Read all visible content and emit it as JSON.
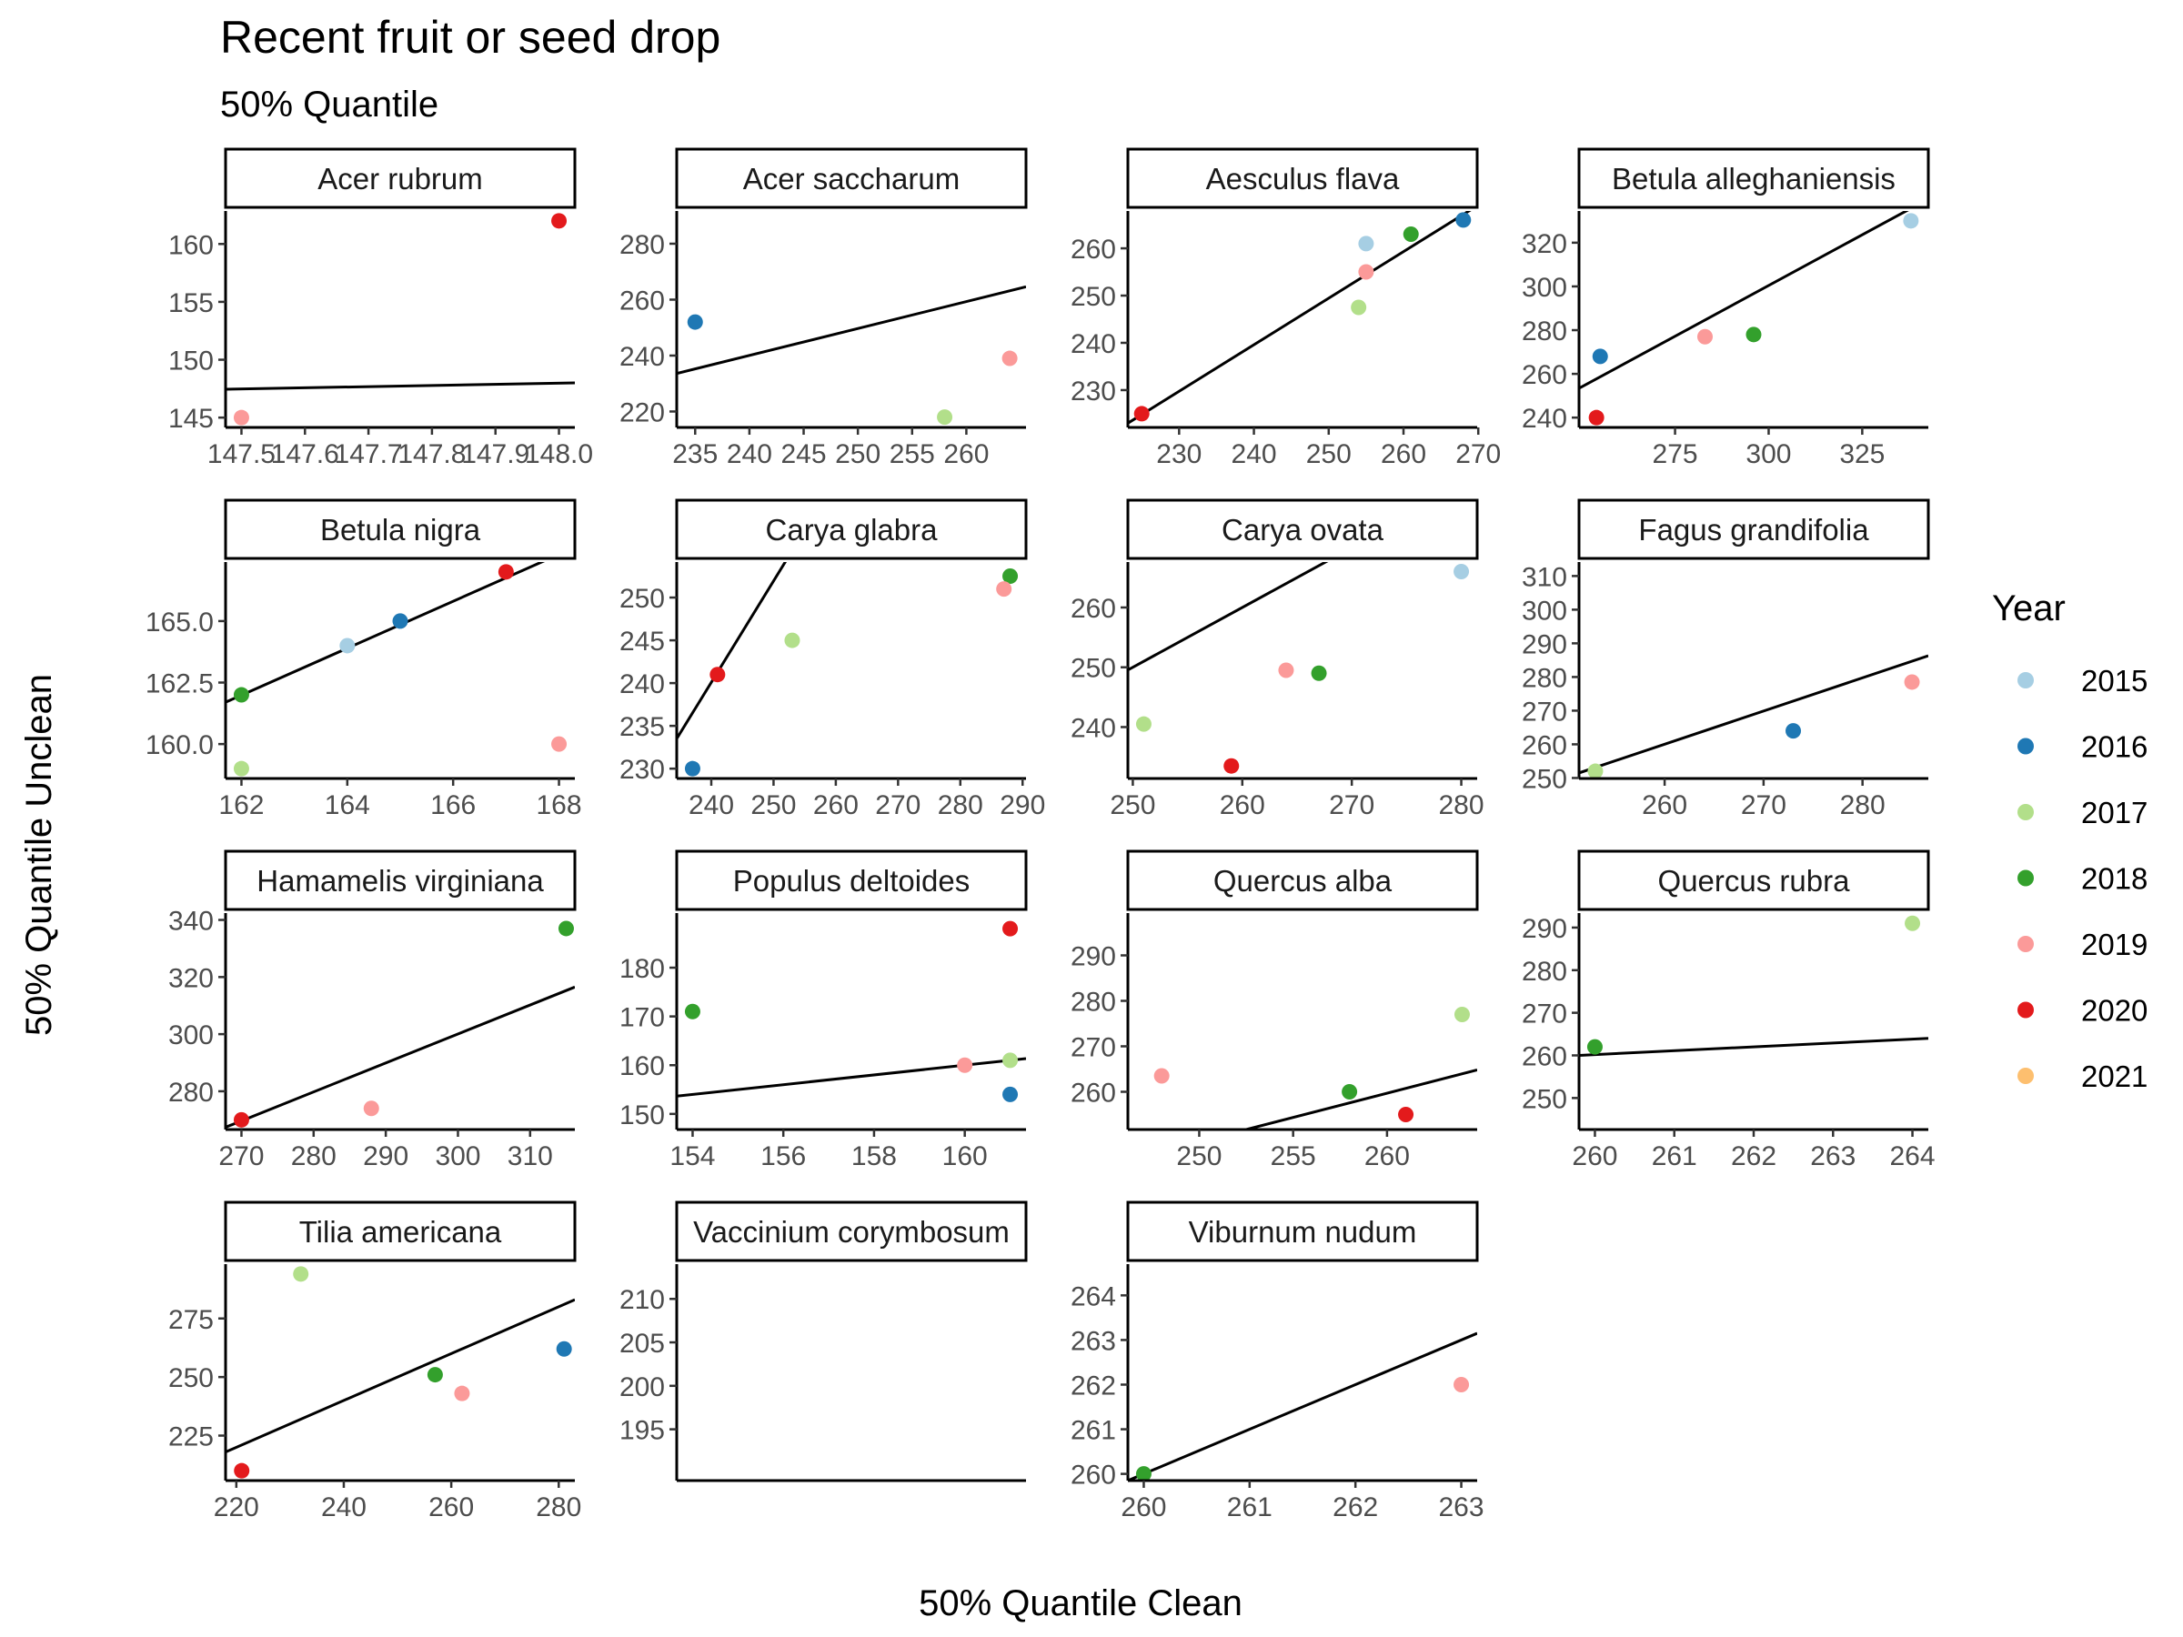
{
  "chart_data": {
    "type": "scatter",
    "title": "Recent fruit or seed drop",
    "subtitle": "50% Quantile",
    "xlabel": "50% Quantile Clean",
    "ylabel": "50% Quantile Unclean",
    "grid": false,
    "legend": {
      "title": "Year",
      "position": "right",
      "entries": [
        {
          "label": "2015",
          "color": "#a6cee3"
        },
        {
          "label": "2016",
          "color": "#1f78b4"
        },
        {
          "label": "2017",
          "color": "#b2df8a"
        },
        {
          "label": "2018",
          "color": "#33a02c"
        },
        {
          "label": "2019",
          "color": "#fb9a99"
        },
        {
          "label": "2020",
          "color": "#e31a1c"
        },
        {
          "label": "2021",
          "color": "#fdbf6f"
        }
      ]
    },
    "panels": [
      {
        "name": "Acer rubrum",
        "xlim": [
          147.475,
          148.025
        ],
        "ylim": [
          144.15,
          162.85
        ],
        "xticks": [
          147.5,
          147.6,
          147.7,
          147.8,
          147.9,
          148.0
        ],
        "xtick_labels": [
          "147.5",
          "147.6",
          "147.7",
          "147.8",
          "147.9",
          "148.0"
        ],
        "yticks": [
          145,
          150,
          155,
          160
        ],
        "ytick_labels": [
          "145",
          "150",
          "155",
          "160"
        ],
        "points": [
          {
            "x": 147.5,
            "y": 145,
            "year": "2019"
          },
          {
            "x": 148.0,
            "y": 162,
            "year": "2020"
          }
        ],
        "fit": [
          [
            147.475,
            147.45
          ],
          [
            148.025,
            148.0
          ]
        ]
      },
      {
        "name": "Acer saccharum",
        "xlim": [
          233.3,
          265.5
        ],
        "ylim": [
          214.3,
          291.7
        ],
        "xticks": [
          235,
          240,
          245,
          250,
          255,
          260
        ],
        "xtick_labels": [
          "235",
          "240",
          "245",
          "250",
          "255",
          "260"
        ],
        "yticks": [
          220,
          240,
          260,
          280
        ],
        "ytick_labels": [
          "220",
          "240",
          "260",
          "280"
        ],
        "points": [
          {
            "x": 235,
            "y": 252,
            "year": "2016"
          },
          {
            "x": 258,
            "y": 218,
            "year": "2017"
          },
          {
            "x": 264,
            "y": 239,
            "year": "2019"
          }
        ],
        "fit": [
          [
            233.3,
            233.6
          ],
          [
            265.5,
            264.6
          ]
        ]
      },
      {
        "name": "Aesculus flava",
        "xlim": [
          223.15,
          269.85
        ],
        "ylim": [
          222.1,
          267.9
        ],
        "xticks": [
          230,
          240,
          250,
          260,
          270
        ],
        "xtick_labels": [
          "230",
          "240",
          "250",
          "260",
          "270"
        ],
        "yticks": [
          230,
          240,
          250,
          260
        ],
        "ytick_labels": [
          "230",
          "240",
          "250",
          "260"
        ],
        "points": [
          {
            "x": 255,
            "y": 261,
            "year": "2015"
          },
          {
            "x": 268,
            "y": 266,
            "year": "2016"
          },
          {
            "x": 254,
            "y": 247.5,
            "year": "2017"
          },
          {
            "x": 261,
            "y": 263,
            "year": "2018"
          },
          {
            "x": 255,
            "y": 255,
            "year": "2019"
          },
          {
            "x": 225,
            "y": 225,
            "year": "2020"
          }
        ],
        "fit": [
          [
            223.15,
            223.0
          ],
          [
            269.85,
            269.0
          ]
        ]
      },
      {
        "name": "Betula alleghaniensis",
        "xlim": [
          249.35,
          342.65
        ],
        "ylim": [
          235.5,
          334.5
        ],
        "xticks": [
          275,
          300,
          325
        ],
        "xtick_labels": [
          "275",
          "300",
          "325"
        ],
        "yticks": [
          240,
          260,
          280,
          300,
          320
        ],
        "ytick_labels": [
          "240",
          "260",
          "280",
          "300",
          "320"
        ],
        "points": [
          {
            "x": 338,
            "y": 330,
            "year": "2015"
          },
          {
            "x": 255,
            "y": 268,
            "year": "2016"
          },
          {
            "x": 296,
            "y": 278,
            "year": "2018"
          },
          {
            "x": 283,
            "y": 277,
            "year": "2019"
          },
          {
            "x": 254,
            "y": 240,
            "year": "2020"
          }
        ],
        "fit": [
          [
            249.35,
            253.4
          ],
          [
            342.65,
            340.0
          ]
        ]
      },
      {
        "name": "Betula nigra",
        "xlim": [
          161.7,
          168.3
        ],
        "ylim": [
          158.6,
          167.4
        ],
        "xticks": [
          162,
          164,
          166,
          168
        ],
        "xtick_labels": [
          "162",
          "164",
          "166",
          "168"
        ],
        "yticks": [
          160.0,
          162.5,
          165.0
        ],
        "ytick_labels": [
          "160.0",
          "162.5",
          "165.0"
        ],
        "points": [
          {
            "x": 164,
            "y": 164,
            "year": "2015"
          },
          {
            "x": 165,
            "y": 165,
            "year": "2016"
          },
          {
            "x": 162,
            "y": 159,
            "year": "2017"
          },
          {
            "x": 162,
            "y": 162,
            "year": "2018"
          },
          {
            "x": 168,
            "y": 160,
            "year": "2019"
          },
          {
            "x": 167,
            "y": 167,
            "year": "2020"
          }
        ],
        "fit": [
          [
            161.7,
            161.7
          ],
          [
            168.3,
            168.0
          ]
        ]
      },
      {
        "name": "Carya glabra",
        "xlim": [
          234.45,
          290.55
        ],
        "ylim": [
          228.85,
          254.15
        ],
        "xticks": [
          240,
          250,
          260,
          270,
          280,
          290
        ],
        "xtick_labels": [
          "240",
          "250",
          "260",
          "270",
          "280",
          "290"
        ],
        "yticks": [
          230,
          235,
          240,
          245,
          250
        ],
        "ytick_labels": [
          "230",
          "235",
          "240",
          "245",
          "250"
        ],
        "points": [
          {
            "x": 237,
            "y": 230,
            "year": "2016"
          },
          {
            "x": 253,
            "y": 245,
            "year": "2017"
          },
          {
            "x": 288,
            "y": 252.5,
            "year": "2018"
          },
          {
            "x": 287,
            "y": 251,
            "year": "2019"
          },
          {
            "x": 241,
            "y": 241,
            "year": "2020"
          }
        ],
        "fit": [
          [
            234.45,
            233.5
          ],
          [
            290.55,
            300.0
          ]
        ]
      },
      {
        "name": "Carya ovata",
        "xlim": [
          249.55,
          281.45
        ],
        "ylim": [
          231.4,
          267.6
        ],
        "xticks": [
          250,
          260,
          270,
          280
        ],
        "xtick_labels": [
          "250",
          "260",
          "270",
          "280"
        ],
        "yticks": [
          240,
          250,
          260
        ],
        "ytick_labels": [
          "240",
          "250",
          "260"
        ],
        "points": [
          {
            "x": 280,
            "y": 266,
            "year": "2015"
          },
          {
            "x": 251,
            "y": 240.5,
            "year": "2017"
          },
          {
            "x": 267,
            "y": 249,
            "year": "2018"
          },
          {
            "x": 264,
            "y": 249.5,
            "year": "2019"
          },
          {
            "x": 259,
            "y": 233.5,
            "year": "2020"
          }
        ],
        "fit": [
          [
            249.55,
            249.55
          ],
          [
            281.45,
            281.45
          ]
        ]
      },
      {
        "name": "Fagus grandifolia",
        "xlim": [
          251.35,
          286.65
        ],
        "ylim": [
          249.85,
          314.15
        ],
        "xticks": [
          260,
          270,
          280
        ],
        "xtick_labels": [
          "260",
          "270",
          "280"
        ],
        "yticks": [
          250,
          260,
          270,
          280,
          290,
          300,
          310
        ],
        "ytick_labels": [
          "250",
          "260",
          "270",
          "280",
          "290",
          "300",
          "310"
        ],
        "points": [
          {
            "x": 273,
            "y": 264,
            "year": "2016"
          },
          {
            "x": 253,
            "y": 252,
            "year": "2017"
          },
          {
            "x": 285,
            "y": 278.5,
            "year": "2019"
          }
        ],
        "fit": [
          [
            251.35,
            251.5
          ],
          [
            286.65,
            286.3
          ]
        ]
      },
      {
        "name": "Hamamelis virginiana",
        "xlim": [
          267.8,
          316.2
        ],
        "ylim": [
          266.6,
          342.4
        ],
        "xticks": [
          270,
          280,
          290,
          300,
          310
        ],
        "xtick_labels": [
          "270",
          "280",
          "290",
          "300",
          "310"
        ],
        "yticks": [
          280,
          300,
          320,
          340
        ],
        "ytick_labels": [
          "280",
          "300",
          "320",
          "340"
        ],
        "points": [
          {
            "x": 315,
            "y": 337,
            "year": "2018"
          },
          {
            "x": 288,
            "y": 274,
            "year": "2019"
          },
          {
            "x": 270,
            "y": 270,
            "year": "2020"
          }
        ],
        "fit": [
          [
            267.8,
            267.4
          ],
          [
            316.2,
            316.5
          ]
        ]
      },
      {
        "name": "Populus deltoides",
        "xlim": [
          153.65,
          161.35
        ],
        "ylim": [
          146.8,
          191.2
        ],
        "xticks": [
          154,
          156,
          158,
          160
        ],
        "xtick_labels": [
          "154",
          "156",
          "158",
          "160"
        ],
        "yticks": [
          150,
          160,
          170,
          180
        ],
        "ytick_labels": [
          "150",
          "160",
          "170",
          "180"
        ],
        "points": [
          {
            "x": 161,
            "y": 154,
            "year": "2016"
          },
          {
            "x": 161,
            "y": 161,
            "year": "2017"
          },
          {
            "x": 154,
            "y": 171,
            "year": "2018"
          },
          {
            "x": 160,
            "y": 160,
            "year": "2019"
          },
          {
            "x": 161,
            "y": 188,
            "year": "2020"
          }
        ],
        "fit": [
          [
            153.65,
            153.65
          ],
          [
            161.35,
            161.35
          ]
        ]
      },
      {
        "name": "Quercus alba",
        "xlim": [
          246.2,
          264.8
        ],
        "ylim": [
          251.7,
          299.3
        ],
        "xticks": [
          250,
          255,
          260
        ],
        "xtick_labels": [
          "250",
          "255",
          "260"
        ],
        "yticks": [
          260,
          270,
          280,
          290
        ],
        "ytick_labels": [
          "260",
          "270",
          "280",
          "290"
        ],
        "points": [
          {
            "x": 264,
            "y": 277,
            "year": "2017"
          },
          {
            "x": 258,
            "y": 260,
            "year": "2018"
          },
          {
            "x": 248,
            "y": 263.5,
            "year": "2019"
          },
          {
            "x": 261,
            "y": 255,
            "year": "2020"
          }
        ],
        "fit": [
          [
            252.5,
            251.7
          ],
          [
            264.8,
            264.8
          ]
        ]
      },
      {
        "name": "Quercus rubra",
        "xlim": [
          259.8,
          264.2
        ],
        "ylim": [
          242.6,
          293.4
        ],
        "xticks": [
          260,
          261,
          262,
          263,
          264
        ],
        "xtick_labels": [
          "260",
          "261",
          "262",
          "263",
          "264"
        ],
        "yticks": [
          250,
          260,
          270,
          280,
          290
        ],
        "ytick_labels": [
          "250",
          "260",
          "270",
          "280",
          "290"
        ],
        "points": [
          {
            "x": 264,
            "y": 291,
            "year": "2017"
          },
          {
            "x": 260,
            "y": 262,
            "year": "2018"
          }
        ],
        "fit": [
          [
            259.8,
            260.0
          ],
          [
            264.2,
            264.0
          ]
        ]
      },
      {
        "name": "Tilia americana",
        "xlim": [
          218.0,
          283.0
        ],
        "ylim": [
          205.8,
          298.2
        ],
        "xticks": [
          220,
          240,
          260,
          280
        ],
        "xtick_labels": [
          "220",
          "240",
          "260",
          "280"
        ],
        "yticks": [
          225,
          250,
          275
        ],
        "ytick_labels": [
          "225",
          "250",
          "275"
        ],
        "points": [
          {
            "x": 281,
            "y": 262,
            "year": "2016"
          },
          {
            "x": 232,
            "y": 294,
            "year": "2017"
          },
          {
            "x": 257,
            "y": 251,
            "year": "2018"
          },
          {
            "x": 262,
            "y": 243,
            "year": "2019"
          },
          {
            "x": 221,
            "y": 210,
            "year": "2020"
          }
        ],
        "fit": [
          [
            218.0,
            218.0
          ],
          [
            283.0,
            283.0
          ]
        ]
      },
      {
        "name": "Vaccinium corymbosum",
        "xlim": [
          0,
          1
        ],
        "ylim": [
          189.1,
          214.0
        ],
        "xticks": [],
        "xtick_labels": [],
        "yticks": [
          195,
          200,
          205,
          210
        ],
        "ytick_labels": [
          "195",
          "200",
          "205",
          "210"
        ],
        "points": [],
        "fit": []
      },
      {
        "name": "Viburnum nudum",
        "xlim": [
          259.85,
          263.15
        ],
        "ylim": [
          259.85,
          264.7
        ],
        "xticks": [
          260,
          261,
          262,
          263
        ],
        "xtick_labels": [
          "260",
          "261",
          "262",
          "263"
        ],
        "yticks": [
          260,
          261,
          262,
          263,
          264
        ],
        "ytick_labels": [
          "260",
          "261",
          "262",
          "263",
          "264"
        ],
        "points": [
          {
            "x": 260,
            "y": 260,
            "year": "2018"
          },
          {
            "x": 263,
            "y": 262,
            "year": "2019"
          }
        ],
        "fit": [
          [
            259.85,
            259.85
          ],
          [
            263.15,
            263.15
          ]
        ]
      }
    ]
  }
}
